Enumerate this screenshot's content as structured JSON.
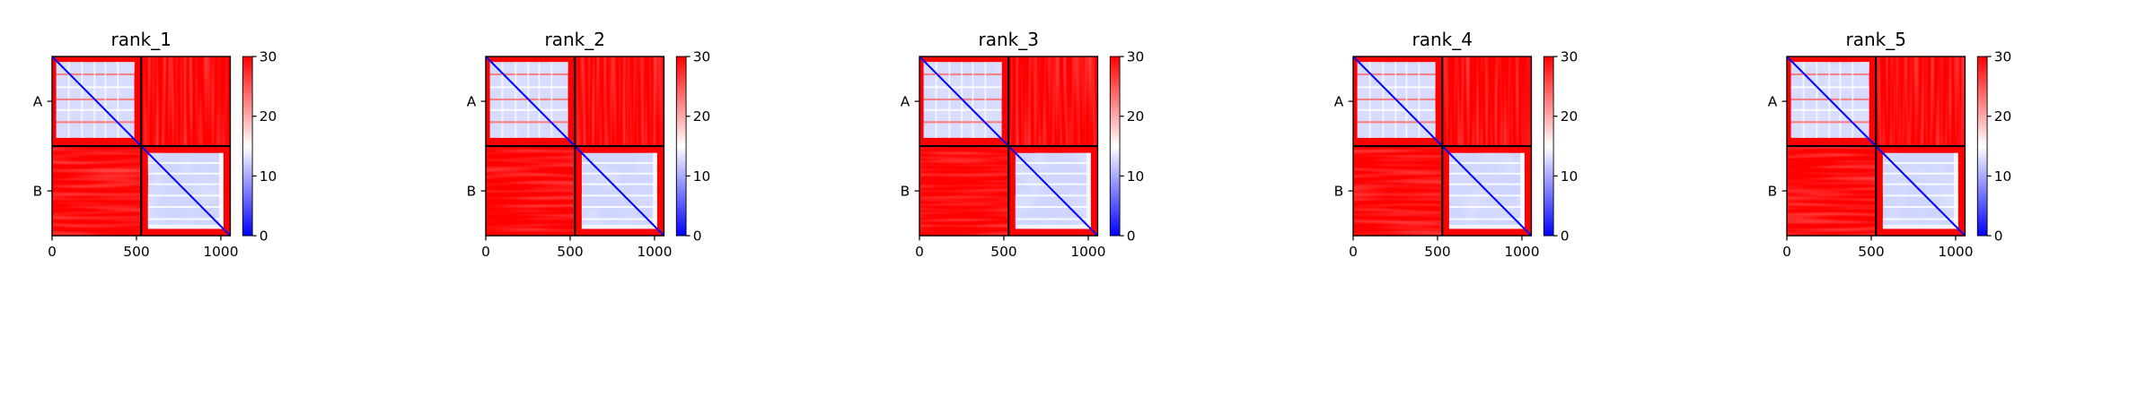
{
  "chart_data": {
    "type": "heatmap",
    "x_range": [
      0,
      1056
    ],
    "x_ticks": [
      0,
      500,
      1000
    ],
    "x_tick_labels": [
      "0",
      "500",
      "1000"
    ],
    "chain_boundary": 528,
    "chain_labels": [
      "A",
      "B"
    ],
    "colorbar": {
      "range": [
        0,
        30
      ],
      "ticks": [
        0,
        10,
        20,
        30
      ],
      "tick_labels": [
        "0",
        "10",
        "20",
        "30"
      ],
      "colormap": "bwr",
      "colors": [
        "#0000ff",
        "#ffffff",
        "#ff0000"
      ]
    },
    "grid": false,
    "panels": [
      {
        "title": "rank_1"
      },
      {
        "title": "rank_2"
      },
      {
        "title": "rank_3"
      },
      {
        "title": "rank_4"
      },
      {
        "title": "rank_5"
      }
    ]
  }
}
